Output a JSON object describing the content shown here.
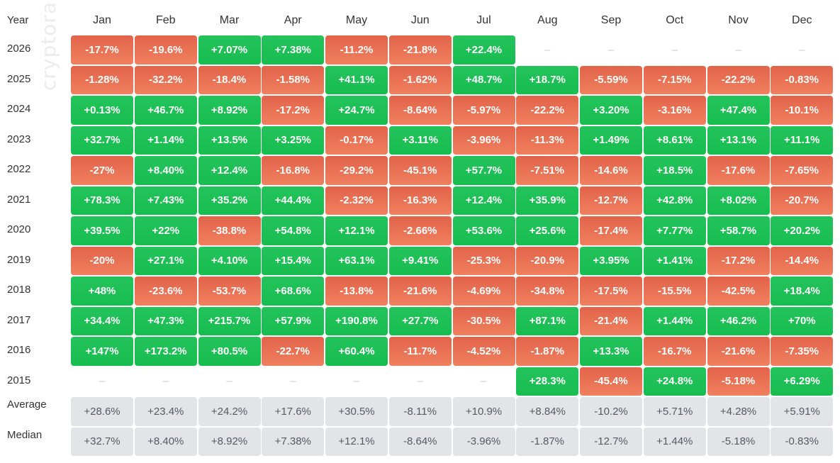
{
  "watermark": "cryptorank",
  "header": {
    "year_label": "Year",
    "months": [
      "Jan",
      "Feb",
      "Mar",
      "Apr",
      "May",
      "Jun",
      "Jul",
      "Aug",
      "Sep",
      "Oct",
      "Nov",
      "Dec"
    ]
  },
  "colors": {
    "positive": "#1fc157",
    "negative": "#ec7557",
    "stat": "#e2e4e8",
    "empty_dash": "#c6c8cc"
  },
  "chart_data": {
    "type": "heatmap",
    "x": [
      "Jan",
      "Feb",
      "Mar",
      "Apr",
      "May",
      "Jun",
      "Jul",
      "Aug",
      "Sep",
      "Oct",
      "Nov",
      "Dec"
    ],
    "rows": [
      {
        "label": "2026",
        "values": [
          "-17.7%",
          "-19.6%",
          "+7.07%",
          "+7.38%",
          "-11.2%",
          "-21.8%",
          "+22.4%",
          "–",
          "–",
          "–",
          "–",
          "–"
        ]
      },
      {
        "label": "2025",
        "values": [
          "-1.28%",
          "-32.2%",
          "-18.4%",
          "-1.58%",
          "+41.1%",
          "-1.62%",
          "+48.7%",
          "+18.7%",
          "-5.59%",
          "-7.15%",
          "-22.2%",
          "-0.83%"
        ]
      },
      {
        "label": "2024",
        "values": [
          "+0.13%",
          "+46.7%",
          "+8.92%",
          "-17.2%",
          "+24.7%",
          "-8.64%",
          "-5.97%",
          "-22.2%",
          "+3.20%",
          "-3.16%",
          "+47.4%",
          "-10.1%"
        ]
      },
      {
        "label": "2023",
        "values": [
          "+32.7%",
          "+1.14%",
          "+13.5%",
          "+3.25%",
          "-0.17%",
          "+3.11%",
          "-3.96%",
          "-11.3%",
          "+1.49%",
          "+8.61%",
          "+13.1%",
          "+11.1%"
        ]
      },
      {
        "label": "2022",
        "values": [
          "-27%",
          "+8.40%",
          "+12.4%",
          "-16.8%",
          "-29.2%",
          "-45.1%",
          "+57.7%",
          "-7.51%",
          "-14.6%",
          "+18.5%",
          "-17.6%",
          "-7.65%"
        ]
      },
      {
        "label": "2021",
        "values": [
          "+78.3%",
          "+7.43%",
          "+35.2%",
          "+44.4%",
          "-2.32%",
          "-16.3%",
          "+12.4%",
          "+35.9%",
          "-12.7%",
          "+42.8%",
          "+8.02%",
          "-20.7%"
        ]
      },
      {
        "label": "2020",
        "values": [
          "+39.5%",
          "+22%",
          "-38.8%",
          "+54.8%",
          "+12.1%",
          "-2.66%",
          "+53.6%",
          "+25.6%",
          "-17.4%",
          "+7.77%",
          "+58.7%",
          "+20.2%"
        ]
      },
      {
        "label": "2019",
        "values": [
          "-20%",
          "+27.1%",
          "+4.10%",
          "+15.4%",
          "+63.1%",
          "+9.41%",
          "-25.3%",
          "-20.9%",
          "+3.95%",
          "+1.41%",
          "-17.2%",
          "-14.4%"
        ]
      },
      {
        "label": "2018",
        "values": [
          "+48%",
          "-23.6%",
          "-53.7%",
          "+68.6%",
          "-13.8%",
          "-21.6%",
          "-4.69%",
          "-34.8%",
          "-17.5%",
          "-15.5%",
          "-42.5%",
          "+18.4%"
        ]
      },
      {
        "label": "2017",
        "values": [
          "+34.4%",
          "+47.3%",
          "+215.7%",
          "+57.9%",
          "+190.8%",
          "+27.7%",
          "-30.5%",
          "+87.1%",
          "-21.4%",
          "+1.44%",
          "+46.2%",
          "+70%"
        ]
      },
      {
        "label": "2016",
        "values": [
          "+147%",
          "+173.2%",
          "+80.5%",
          "-22.7%",
          "+60.4%",
          "-11.7%",
          "-4.52%",
          "-1.87%",
          "+13.3%",
          "-16.7%",
          "-21.6%",
          "-7.35%"
        ]
      },
      {
        "label": "2015",
        "values": [
          "–",
          "–",
          "–",
          "–",
          "–",
          "–",
          "–",
          "+28.3%",
          "-45.4%",
          "+24.8%",
          "-5.18%",
          "+6.29%"
        ]
      }
    ],
    "stats": [
      {
        "label": "Average",
        "values": [
          "+28.6%",
          "+23.4%",
          "+24.2%",
          "+17.6%",
          "+30.5%",
          "-8.11%",
          "+10.9%",
          "+8.84%",
          "-10.2%",
          "+5.71%",
          "+4.28%",
          "+5.91%"
        ]
      },
      {
        "label": "Median",
        "values": [
          "+32.7%",
          "+8.40%",
          "+8.92%",
          "+7.38%",
          "+12.1%",
          "-8.64%",
          "-3.96%",
          "-1.87%",
          "-12.7%",
          "+1.44%",
          "-5.18%",
          "-0.83%"
        ]
      }
    ]
  }
}
